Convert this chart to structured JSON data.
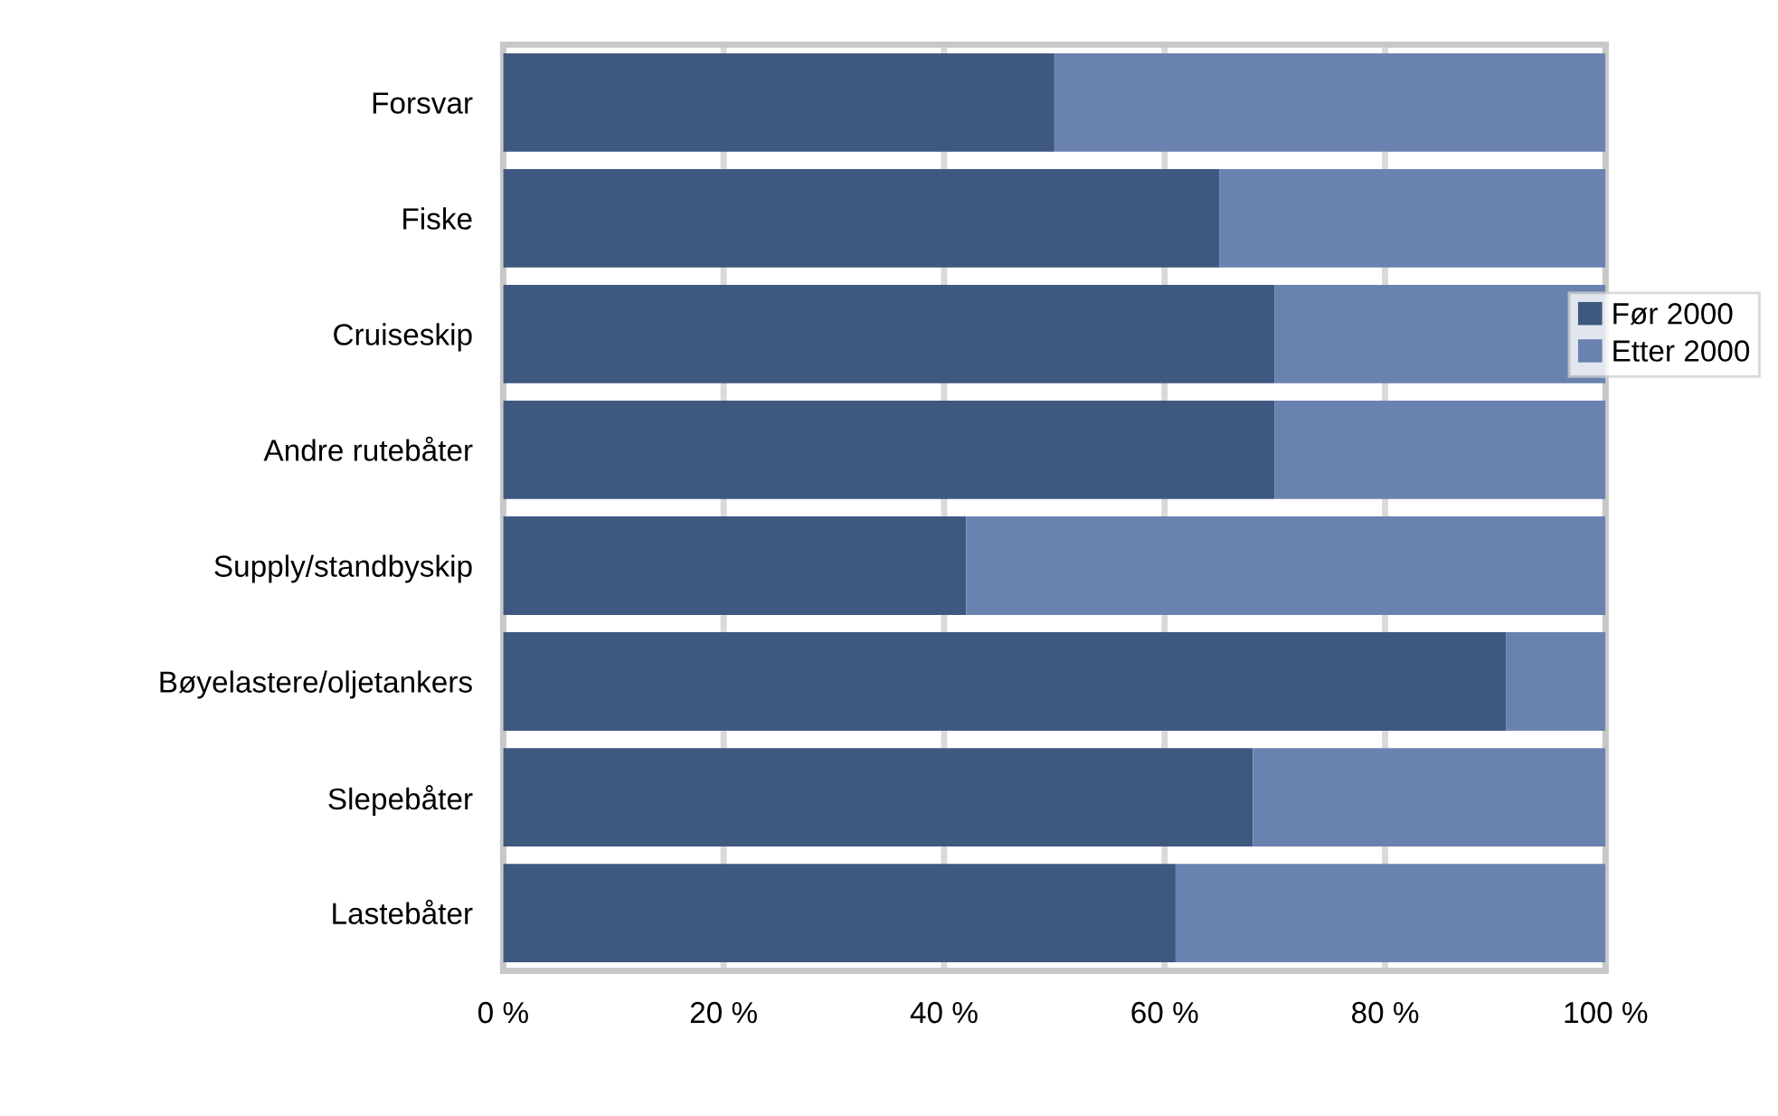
{
  "chart_data": {
    "type": "bar",
    "orientation": "horizontal",
    "stacked": true,
    "categories": [
      "Forsvar",
      "Fiske",
      "Cruiseskip",
      "Andre rutebåter",
      "Supply/standbyskip",
      "Bøyelastere/oljetankers",
      "Slepebåter",
      "Lastebåter"
    ],
    "series": [
      {
        "name": "Før 2000",
        "color": "#3f5880",
        "values": [
          50,
          65,
          70,
          70,
          42,
          91,
          68,
          61
        ]
      },
      {
        "name": "Etter 2000",
        "color": "#6a82b0",
        "values": [
          50,
          35,
          30,
          30,
          58,
          9,
          32,
          39
        ]
      }
    ],
    "xlim": [
      0,
      100
    ],
    "xticks": [
      {
        "value": 0,
        "label": "0 %"
      },
      {
        "value": 20,
        "label": "20 %"
      },
      {
        "value": 40,
        "label": "40 %"
      },
      {
        "value": 60,
        "label": "60 %"
      },
      {
        "value": 80,
        "label": "80 %"
      },
      {
        "value": 100,
        "label": "100 %"
      }
    ],
    "grid": "x",
    "legend": "right"
  }
}
